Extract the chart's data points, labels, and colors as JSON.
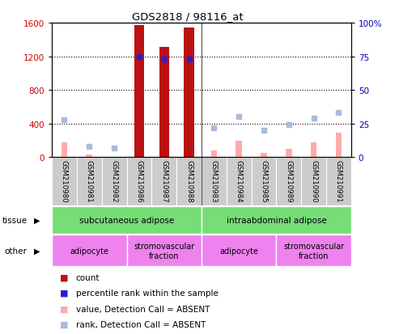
{
  "title": "GDS2818 / 98116_at",
  "samples": [
    "GSM210980",
    "GSM210981",
    "GSM210982",
    "GSM210986",
    "GSM210987",
    "GSM210988",
    "GSM210983",
    "GSM210984",
    "GSM210985",
    "GSM210989",
    "GSM210990",
    "GSM210991"
  ],
  "count_values": [
    0,
    0,
    0,
    1570,
    1310,
    1545,
    0,
    0,
    0,
    0,
    0,
    0
  ],
  "count_absent_values": [
    175,
    30,
    0,
    0,
    0,
    0,
    80,
    195,
    55,
    100,
    175,
    290
  ],
  "percentile_rank": [
    null,
    null,
    null,
    75,
    73,
    73,
    null,
    null,
    null,
    null,
    null,
    null
  ],
  "rank_absent_values": [
    28,
    8,
    7,
    null,
    null,
    null,
    22,
    30,
    20,
    24,
    29,
    33
  ],
  "ylim_left": [
    0,
    1600
  ],
  "ylim_right": [
    0,
    100
  ],
  "yticks_left": [
    0,
    400,
    800,
    1200,
    1600
  ],
  "yticks_right": [
    0,
    25,
    50,
    75,
    100
  ],
  "tissue_groups": [
    {
      "label": "subcutaneous adipose",
      "start": 0,
      "end": 6,
      "color": "#77DD77"
    },
    {
      "label": "intraabdominal adipose",
      "start": 6,
      "end": 12,
      "color": "#77DD77"
    }
  ],
  "other_groups": [
    {
      "label": "adipocyte",
      "start": 0,
      "end": 3,
      "color": "#EE82EE"
    },
    {
      "label": "stromovascular\nfraction",
      "start": 3,
      "end": 6,
      "color": "#EE82EE"
    },
    {
      "label": "adipocyte",
      "start": 6,
      "end": 9,
      "color": "#EE82EE"
    },
    {
      "label": "stromovascular\nfraction",
      "start": 9,
      "end": 12,
      "color": "#EE82EE"
    }
  ],
  "bar_color_dark_red": "#BB1111",
  "bar_color_absent_pink": "#FFAAAA",
  "dot_color_blue": "#2222CC",
  "dot_color_absent_blue": "#AABBDD",
  "legend_items": [
    {
      "color": "#BB1111",
      "label": "count"
    },
    {
      "color": "#2222CC",
      "label": "percentile rank within the sample"
    },
    {
      "color": "#FFAAAA",
      "label": "value, Detection Call = ABSENT"
    },
    {
      "color": "#AABBDD",
      "label": "rank, Detection Call = ABSENT"
    }
  ],
  "fig_bg_color": "#FFFFFF",
  "plot_bg_color": "#FFFFFF",
  "left_axis_color": "#CC0000",
  "right_axis_color": "#0000BB",
  "xticklabel_bg": "#CCCCCC",
  "group_divider_color": "#888888"
}
